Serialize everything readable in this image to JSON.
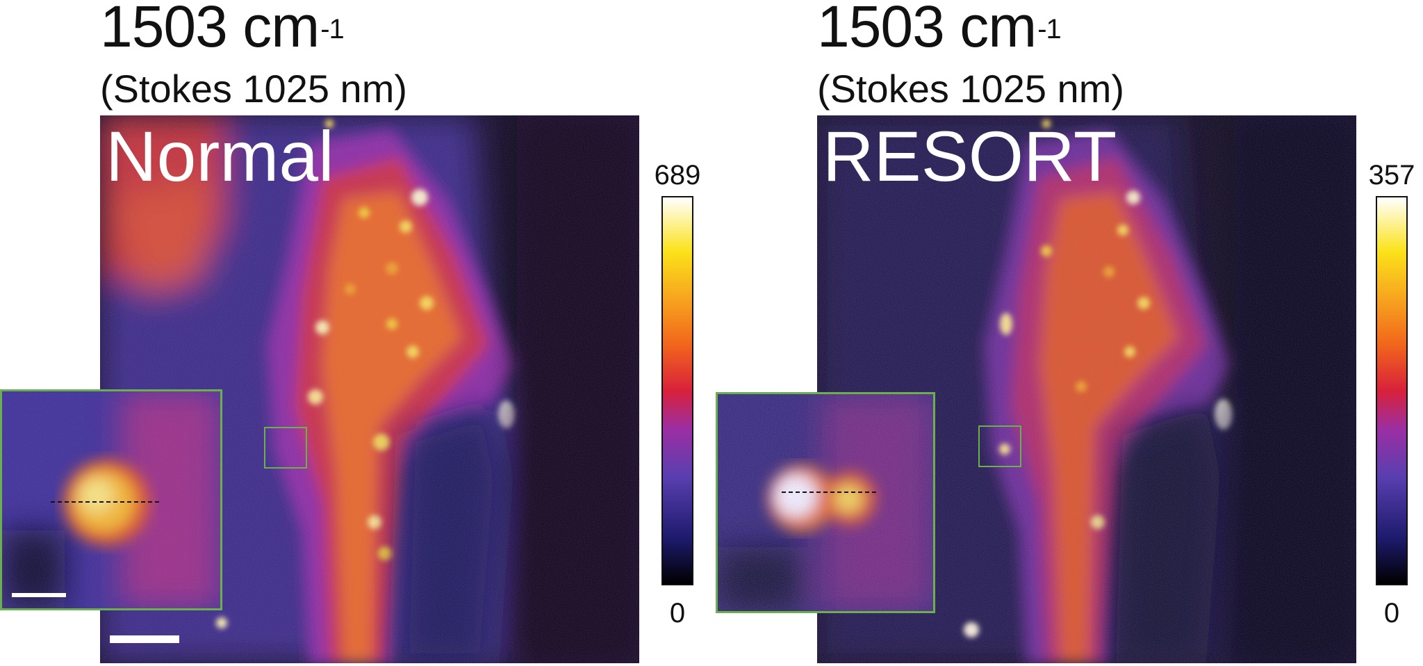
{
  "panels": [
    {
      "title_main": "1503 cm",
      "title_sup": "-1",
      "subtitle": "(Stokes 1025 nm)",
      "label": "Normal",
      "colorbar": {
        "max": "689",
        "min": "0"
      }
    },
    {
      "title_main": "1503 cm",
      "title_sup": "-1",
      "subtitle": "(Stokes 1025 nm)",
      "label": "RESORT",
      "colorbar": {
        "max": "357",
        "min": "0"
      }
    }
  ],
  "colormap": {
    "name": "fire",
    "stops": [
      "#000000",
      "#1e1b6e",
      "#5a3fb0",
      "#9b2fa3",
      "#d8213a",
      "#f2661b",
      "#f7a51f",
      "#fbe21a",
      "#ffffff"
    ]
  },
  "colors": {
    "roi_box": "#6ab04c",
    "scale_bar": "#ffffff",
    "label_text": "#ffffff"
  }
}
